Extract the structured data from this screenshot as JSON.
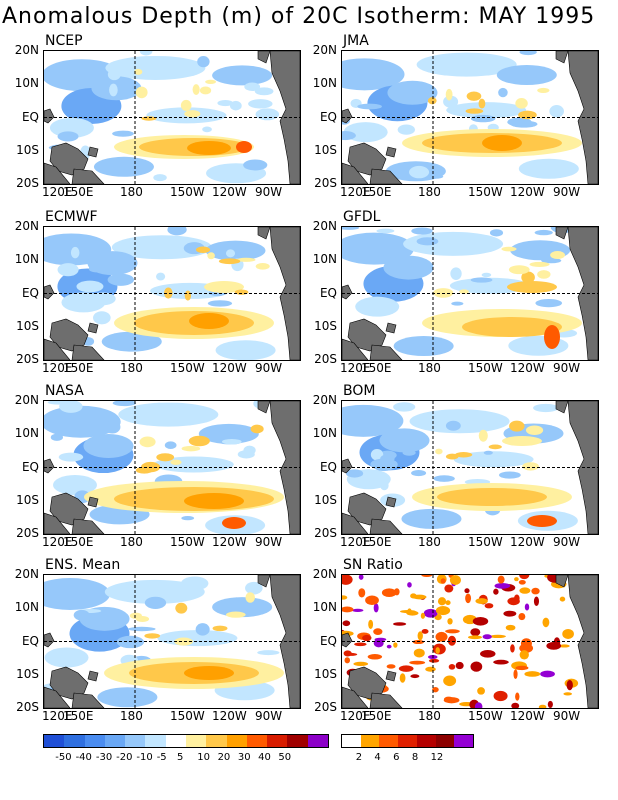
{
  "title": "Anomalous Depth (m) of 20C Isotherm: MAY 1995",
  "panels": [
    {
      "name": "NCEP"
    },
    {
      "name": "JMA"
    },
    {
      "name": "ECMWF"
    },
    {
      "name": "GFDL"
    },
    {
      "name": "NASA"
    },
    {
      "name": "BOM"
    },
    {
      "name": "ENS. Mean"
    },
    {
      "name": "SN Ratio"
    }
  ],
  "lat_labels": [
    "20N",
    "10N",
    "EQ",
    "10S",
    "20S"
  ],
  "lon_labels": [
    "120E",
    "150E",
    "180",
    "150W",
    "120W",
    "90W"
  ],
  "anomaly_colorbar": {
    "labels": [
      "-50",
      "-40",
      "-30",
      "-20",
      "-10",
      "-5",
      "5",
      "10",
      "20",
      "30",
      "40",
      "50"
    ],
    "colors": [
      "#1f4fd6",
      "#2f6fe0",
      "#4a8cf0",
      "#6aa8f5",
      "#96c8fa",
      "#c2e6ff",
      "#ffffff",
      "#fff0a0",
      "#ffc84a",
      "#ffa000",
      "#ff5a00",
      "#d81c00",
      "#a00000",
      "#8c00c8"
    ]
  },
  "sn_colorbar": {
    "labels": [
      "2",
      "4",
      "6",
      "8",
      "12"
    ],
    "colors": [
      "#ffffff",
      "#ffa500",
      "#ff5a00",
      "#e02000",
      "#b40000",
      "#8c0000",
      "#9400d3"
    ]
  },
  "colors": {
    "land": "#6e6e6e",
    "ocean": "#ffffff"
  }
}
